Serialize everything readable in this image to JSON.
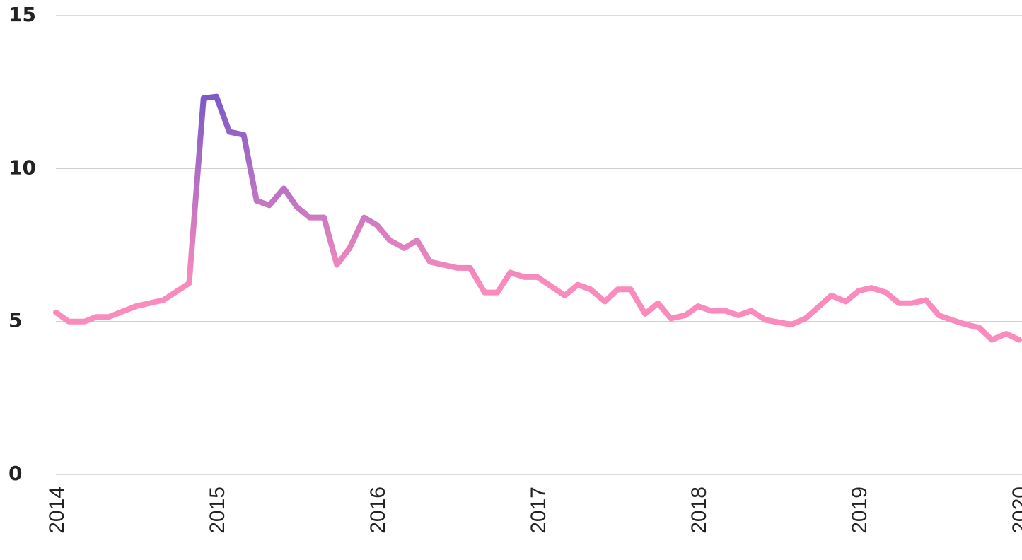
{
  "chart_data": {
    "type": "line",
    "title": "",
    "xlabel": "",
    "ylabel": "",
    "ylim": [
      0,
      15
    ],
    "xlim": [
      2014,
      2020
    ],
    "y_ticks": [
      "0",
      "5",
      "10",
      "15"
    ],
    "x_ticks": [
      "2014",
      "2015",
      "2016",
      "2017",
      "2018",
      "2019",
      "2020"
    ],
    "grid": "horizontal",
    "legend": "none",
    "colors": {
      "low": "#f98bbd",
      "high": "#7d5ac8",
      "grid": "#c8c8c8",
      "text": "#222222"
    },
    "series": [
      {
        "x": [
          2014.0,
          2014.08,
          2014.18,
          2014.25,
          2014.33,
          2014.5,
          2014.67,
          2014.83,
          2014.92,
          2015.0,
          2015.08,
          2015.17,
          2015.25,
          2015.33,
          2015.42,
          2015.5,
          2015.58,
          2015.67,
          2015.75,
          2015.83,
          2015.92,
          2016.0,
          2016.08,
          2016.17,
          2016.25,
          2016.33,
          2016.5,
          2016.58,
          2016.67,
          2016.75,
          2016.83,
          2016.92,
          2017.0,
          2017.17,
          2017.25,
          2017.33,
          2017.42,
          2017.5,
          2017.58,
          2017.67,
          2017.75,
          2017.83,
          2017.92,
          2018.0,
          2018.08,
          2018.17,
          2018.25,
          2018.33,
          2018.42,
          2018.58,
          2018.67,
          2018.83,
          2018.92,
          2019.0,
          2019.08,
          2019.17,
          2019.25,
          2019.33,
          2019.42,
          2019.5,
          2019.58,
          2019.67,
          2019.75,
          2019.83,
          2019.92,
          2020.0
        ],
        "values": [
          5.3,
          5.0,
          5.0,
          5.15,
          5.15,
          5.5,
          5.7,
          6.25,
          12.3,
          12.35,
          11.2,
          11.1,
          8.95,
          8.8,
          9.35,
          8.75,
          8.4,
          8.4,
          6.85,
          7.4,
          8.4,
          8.15,
          7.65,
          7.4,
          7.65,
          6.95,
          6.75,
          6.75,
          5.95,
          5.95,
          6.6,
          6.45,
          6.45,
          5.85,
          6.2,
          6.05,
          5.65,
          6.05,
          6.05,
          5.25,
          5.6,
          5.1,
          5.2,
          5.5,
          5.35,
          5.35,
          5.2,
          5.35,
          5.05,
          4.9,
          5.1,
          5.85,
          5.65,
          6.0,
          6.1,
          5.95,
          5.6,
          5.6,
          5.7,
          5.2,
          5.05,
          4.9,
          4.8,
          4.4,
          4.6,
          4.4
        ]
      }
    ]
  }
}
